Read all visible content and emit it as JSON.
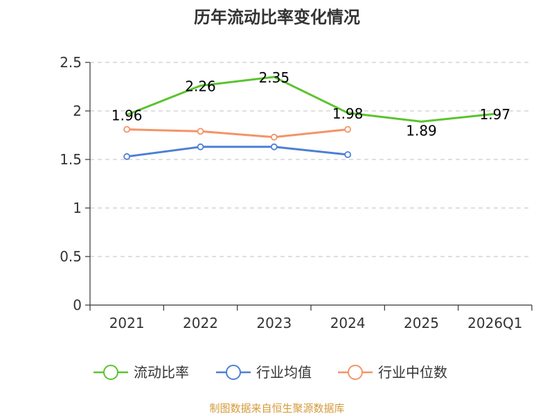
{
  "colors": {
    "green": "#5bc42e",
    "blue": "#4e7fd6",
    "orange": "#f49368",
    "source": "#d49a3a",
    "grid": "#cccccc",
    "axis": "#333333"
  },
  "chart_data": {
    "type": "line",
    "title": "历年流动比率变化情况",
    "categories": [
      "2021",
      "2022",
      "2023",
      "2024",
      "2025",
      "2026Q1"
    ],
    "ylim": [
      0,
      2.5
    ],
    "yticks": [
      "0",
      "0.5",
      "1",
      "1.5",
      "2",
      "2.5"
    ],
    "series": [
      {
        "name": "流动比率",
        "color_key": "green",
        "values": [
          1.96,
          2.26,
          2.35,
          1.98,
          1.89,
          1.97
        ],
        "labels": [
          "1.96",
          "2.26",
          "2.35",
          "1.98",
          "1.89",
          "1.97"
        ],
        "markers": false
      },
      {
        "name": "行业均值",
        "color_key": "blue",
        "values": [
          1.53,
          1.63,
          1.63,
          1.55,
          null,
          null
        ],
        "markers": true
      },
      {
        "name": "行业中位数",
        "color_key": "orange",
        "values": [
          1.81,
          1.79,
          1.73,
          1.81,
          null,
          null
        ],
        "markers": true
      }
    ],
    "legend_position": "bottom",
    "grid": true
  },
  "source_note": "制图数据来自恒生聚源数据库"
}
